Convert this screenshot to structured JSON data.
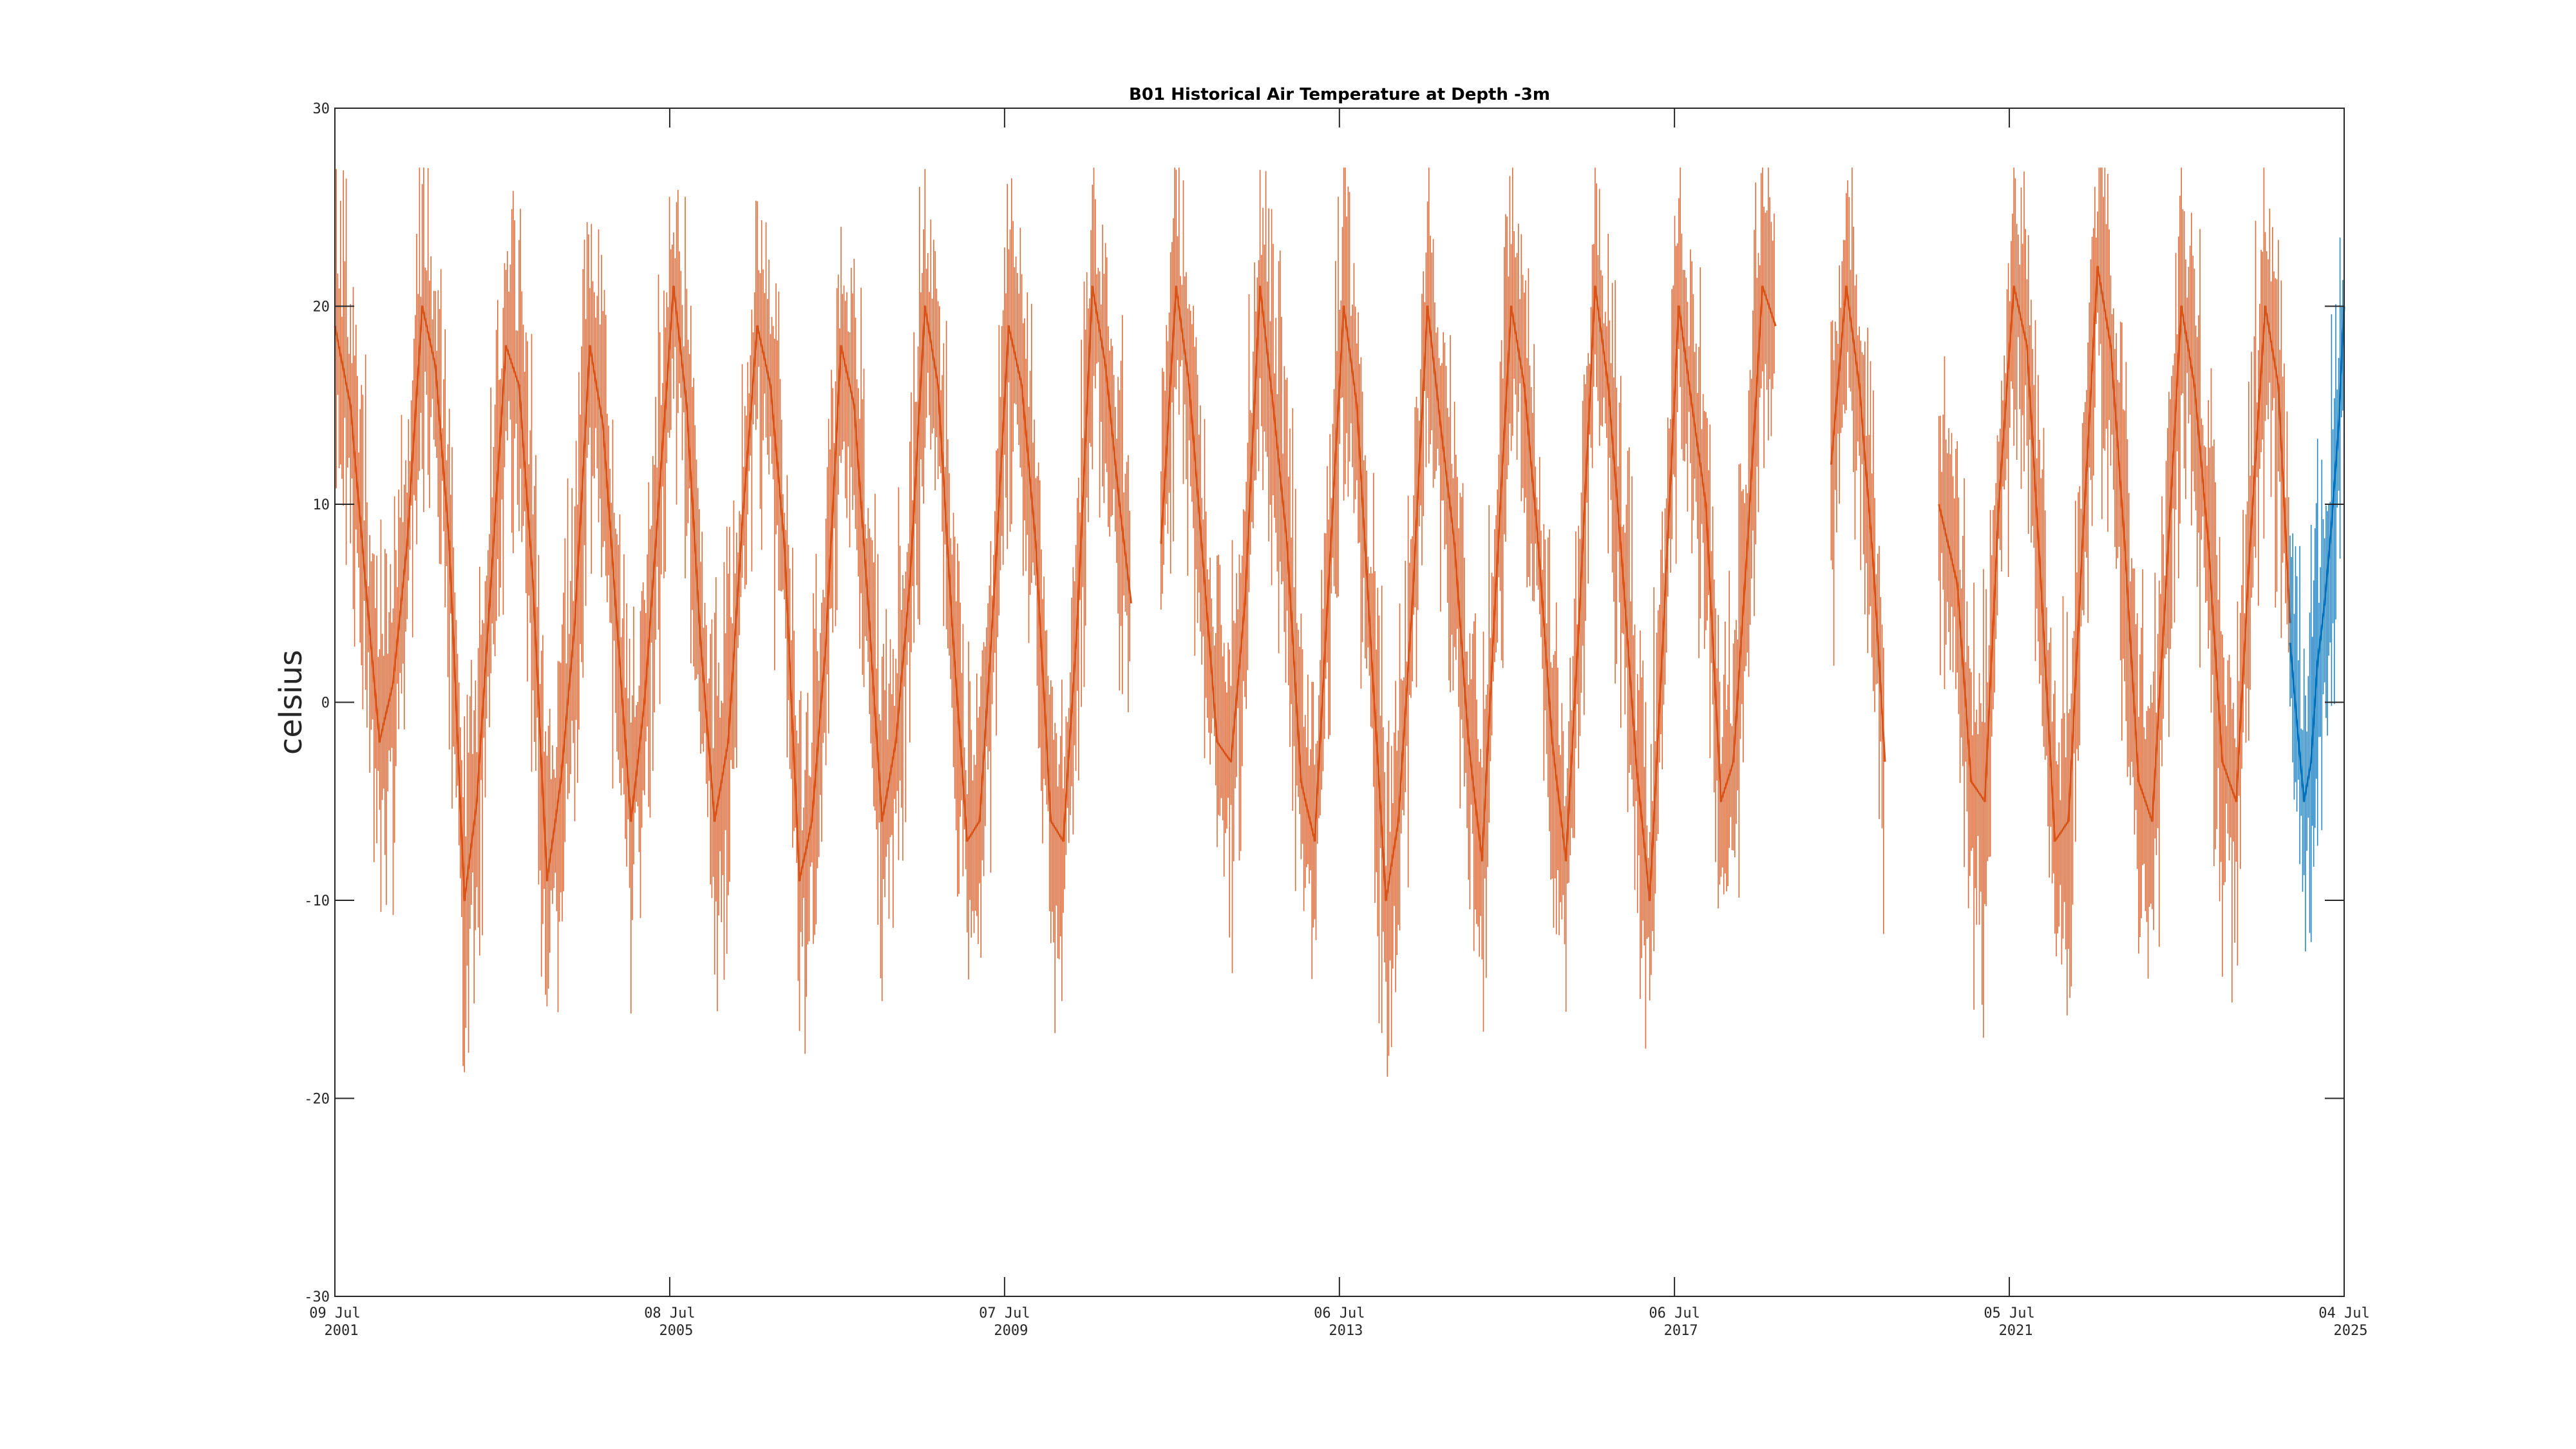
{
  "chart_data": {
    "type": "line",
    "title": "B01 Historical Air Temperature at Depth -3m",
    "xlabel": "",
    "ylabel": "celsius",
    "ylim": [
      -30,
      30
    ],
    "xlim": [
      "2001-07-09",
      "2025-07-04"
    ],
    "grid": false,
    "y_ticks": [
      {
        "value": -30,
        "label": "-30"
      },
      {
        "value": -20,
        "label": "-20"
      },
      {
        "value": -10,
        "label": "-10"
      },
      {
        "value": 0,
        "label": "0"
      },
      {
        "value": 10,
        "label": "10"
      },
      {
        "value": 20,
        "label": "20"
      },
      {
        "value": 30,
        "label": "30"
      }
    ],
    "x_ticks": [
      {
        "date": "2001-07-09",
        "line1": "09 Jul",
        "line2": "2001"
      },
      {
        "date": "2005-07-08",
        "line1": "08 Jul",
        "line2": "2005"
      },
      {
        "date": "2009-07-07",
        "line1": "07 Jul",
        "line2": "2009"
      },
      {
        "date": "2013-07-06",
        "line1": "06 Jul",
        "line2": "2013"
      },
      {
        "date": "2017-07-06",
        "line1": "06 Jul",
        "line2": "2017"
      },
      {
        "date": "2021-07-05",
        "line1": "05 Jul",
        "line2": "2021"
      },
      {
        "date": "2025-07-04",
        "line1": "04 Jul",
        "line2": "2025"
      }
    ],
    "series": [
      {
        "color": "#d95319",
        "x": [
          "2001-07-09",
          "2001-09-15",
          "2001-11-20",
          "2002-01-20",
          "2002-03-20",
          "2002-05-20",
          "2002-07-25",
          "2002-09-20",
          "2002-11-20",
          "2003-01-25",
          "2003-03-20",
          "2003-05-20",
          "2003-07-25",
          "2003-09-20",
          "2003-11-20",
          "2004-01-20",
          "2004-03-20",
          "2004-05-20",
          "2004-07-25",
          "2004-09-20",
          "2004-11-20",
          "2005-01-20",
          "2005-03-20",
          "2005-05-20",
          "2005-07-25",
          "2005-09-20",
          "2005-11-20",
          "2006-01-20",
          "2006-03-20",
          "2006-05-20",
          "2006-07-25",
          "2006-09-20",
          "2006-11-20",
          "2007-01-25",
          "2007-03-20",
          "2007-05-20",
          "2007-07-25",
          "2007-09-20",
          "2007-11-20",
          "2008-01-20",
          "2008-03-20",
          "2008-05-20",
          "2008-07-25",
          "2008-09-20",
          "2008-11-20",
          "2009-01-25",
          "2009-03-20",
          "2009-05-20",
          "2009-07-25",
          "2009-09-20",
          "2009-11-20",
          "2010-01-25",
          "2010-03-20",
          "2010-05-20",
          "2010-07-25",
          "2010-09-20",
          "2010-11-20",
          "2011-01-10",
          null,
          "2011-05-20",
          "2011-07-25",
          "2011-09-20",
          "2011-11-20",
          "2012-01-20",
          "2012-03-20",
          "2012-05-20",
          "2012-07-25",
          "2012-09-20",
          "2012-11-20",
          "2013-01-20",
          "2013-03-20",
          "2013-05-20",
          "2013-07-25",
          "2013-09-20",
          "2013-11-20",
          "2014-01-25",
          "2014-03-20",
          "2014-05-20",
          "2014-07-25",
          "2014-09-20",
          "2014-11-20",
          "2015-01-20",
          "2015-03-20",
          "2015-05-20",
          "2015-07-25",
          "2015-09-20",
          "2015-11-20",
          "2016-01-20",
          "2016-03-20",
          "2016-05-20",
          "2016-07-25",
          "2016-09-20",
          "2016-11-20",
          "2017-01-20",
          "2017-03-20",
          "2017-05-20",
          "2017-07-25",
          "2017-09-20",
          "2017-11-20",
          "2018-01-25",
          "2018-03-20",
          "2018-05-20",
          "2018-07-25",
          "2018-09-20",
          null,
          "2019-05-20",
          "2019-07-25",
          "2019-09-20",
          "2019-11-20",
          "2020-01-10",
          null,
          "2020-09-01",
          "2020-11-20",
          "2021-01-20",
          "2021-03-20",
          "2021-05-20",
          "2021-07-25",
          "2021-09-20",
          "2021-11-20",
          "2022-01-20",
          "2022-03-20",
          "2022-05-20",
          "2022-07-25",
          "2022-09-20",
          "2022-11-20",
          "2023-01-20",
          "2023-03-20",
          "2023-05-20",
          "2023-07-25",
          "2023-09-20",
          "2023-11-20",
          "2024-01-20",
          "2024-03-20",
          "2024-05-20",
          "2024-07-25",
          "2024-09-20",
          "2024-11-10"
        ],
        "y": [
          19,
          15,
          6,
          -2,
          1,
          8,
          20,
          17,
          8,
          -10,
          -5,
          6,
          18,
          16,
          6,
          -9,
          -4,
          4,
          18,
          14,
          4,
          -6,
          0,
          10,
          21,
          15,
          3,
          -6,
          -2,
          9,
          19,
          16,
          8,
          -9,
          -6,
          3,
          18,
          15,
          5,
          -6,
          -2,
          6,
          20,
          16,
          4,
          -7,
          -6,
          5,
          19,
          16,
          8,
          -6,
          -7,
          4,
          21,
          17,
          10,
          5,
          null,
          8,
          21,
          16,
          7,
          -2,
          -3,
          5,
          21,
          15,
          8,
          -4,
          -7,
          6,
          20,
          15,
          3,
          -10,
          -6,
          5,
          20,
          14,
          8,
          -2,
          -8,
          6,
          20,
          16,
          8,
          -2,
          -8,
          5,
          21,
          16,
          7,
          -3,
          -10,
          4,
          20,
          15,
          10,
          -5,
          -3,
          8,
          21,
          19,
          null,
          12,
          21,
          16,
          7,
          -3,
          null,
          10,
          6,
          -4,
          -5,
          10,
          21,
          18,
          6,
          -7,
          -6,
          8,
          22,
          18,
          8,
          -4,
          -6,
          6,
          20,
          16,
          8,
          -3,
          -5,
          8,
          20,
          16,
          4
        ]
      },
      {
        "color": "#0072bd",
        "x": [
          "2024-11-10",
          "2024-12-10",
          "2025-01-10",
          "2025-02-10",
          "2025-03-10",
          "2025-04-10",
          "2025-05-10",
          "2025-06-10",
          "2025-07-04"
        ],
        "y": [
          3,
          -1,
          -5,
          -3,
          2,
          5,
          9,
          14,
          20
        ]
      }
    ]
  }
}
